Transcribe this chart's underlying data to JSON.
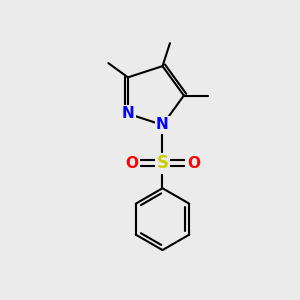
{
  "background_color": "#ebebeb",
  "bond_color": "#000000",
  "N_color": "#0000ff",
  "O_color": "#ff0000",
  "S_color": "#cccc00",
  "line_width": 1.5,
  "fig_size": [
    3.0,
    3.0
  ],
  "dpi": 100,
  "xlim": [
    0,
    10
  ],
  "ylim": [
    0,
    10
  ]
}
